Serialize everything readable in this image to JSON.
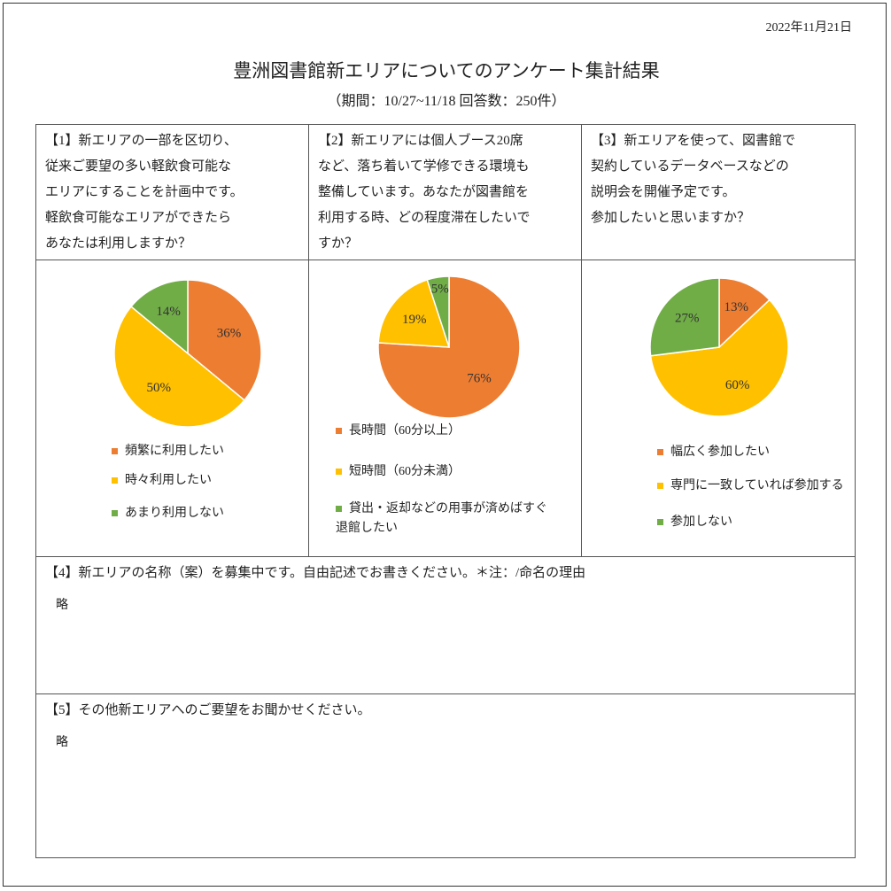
{
  "date": "2022年11月21日",
  "title": "豊洲図書館新エリアについてのアンケート集計結果",
  "subtitle": "（期間：10/27~11/18 回答数：250件）",
  "questions": [
    {
      "lines": [
        "【1】新エリアの一部を区切り、",
        "従来ご要望の多い軽飲食可能な",
        "エリアにすることを計画中です。",
        "軽飲食可能なエリアができたら",
        "あなたは利用しますか？"
      ]
    },
    {
      "lines": [
        "【2】新エリアには個人ブース20席",
        "など、落ち着いて学修できる環境も",
        "整備しています。あなたが図書館を",
        "利用する時、どの程度滞在したいで",
        "すか？"
      ]
    },
    {
      "lines": [
        "【3】新エリアを使って、図書館で",
        "契約しているデータベースなどの",
        "説明会を開催予定です。",
        "参加したいと思いますか？"
      ]
    }
  ],
  "chart_data": [
    {
      "type": "pie",
      "categories": [
        "頻繁に利用したい",
        "時々利用したい",
        "あまり利用しない"
      ],
      "values": [
        36,
        50,
        14
      ],
      "value_labels": [
        "36%",
        "50%",
        "14%"
      ],
      "colors": [
        "#ed7d31",
        "#ffc000",
        "#70ad47"
      ]
    },
    {
      "type": "pie",
      "categories": [
        "長時間（60分以上）",
        "短時間（60分未満）",
        "貸出・返却などの用事が済めばすぐ退館したい"
      ],
      "values": [
        76,
        19,
        5
      ],
      "value_labels": [
        "76%",
        "19%",
        "5%"
      ],
      "colors": [
        "#ed7d31",
        "#ffc000",
        "#70ad47"
      ]
    },
    {
      "type": "pie",
      "categories": [
        "幅広く参加したい",
        "専門に一致していれば参加する",
        "参加しない"
      ],
      "values": [
        13,
        60,
        27
      ],
      "value_labels": [
        "13%",
        "60%",
        "27%"
      ],
      "colors": [
        "#ed7d31",
        "#ffc000",
        "#70ad47"
      ]
    }
  ],
  "free_questions": [
    {
      "text": "【4】新エリアの名称（案）を募集中です。自由記述でお書きください。＊注：/命名の理由",
      "answer": "略"
    },
    {
      "text": "【5】その他新エリアへのご要望をお聞かせください。",
      "answer": "略"
    }
  ]
}
